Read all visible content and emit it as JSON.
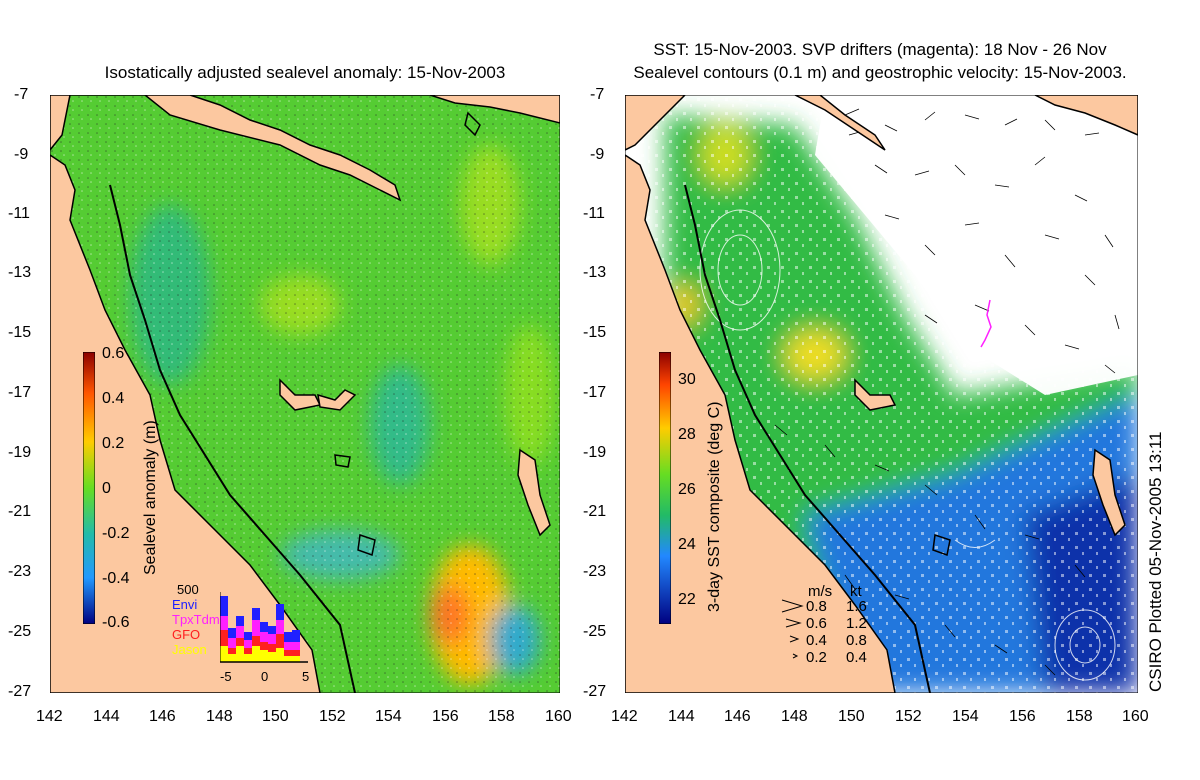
{
  "left_panel": {
    "title": "Isostatically adjusted sealevel anomaly: 15-Nov-2003",
    "y_ticks": [
      "-7",
      "-9",
      "-11",
      "-13",
      "-15",
      "-17",
      "-19",
      "-21",
      "-23",
      "-25",
      "-27"
    ],
    "x_ticks": [
      "142",
      "144",
      "146",
      "148",
      "150",
      "152",
      "154",
      "156",
      "158",
      "160"
    ],
    "colorbar": {
      "label": "Sealevel anomaly (m)",
      "ticks": [
        "0.6",
        "0.4",
        "0.2",
        "0",
        "-0.2",
        "-0.4",
        "-0.6"
      ],
      "range": [
        -0.6,
        0.6
      ]
    },
    "histogram": {
      "max_label": "500",
      "series": [
        "Envi",
        "TpxTdm",
        "GFO",
        "Jason"
      ],
      "series_colors": [
        "#2020ff",
        "#ff20ff",
        "#ff2020",
        "#ffff00"
      ],
      "x_ticks": [
        "-5",
        "0",
        "5"
      ]
    }
  },
  "right_panel": {
    "title_line1": "SST: 15-Nov-2003. SVP drifters (magenta): 18 Nov - 26 Nov",
    "title_line2": "Sealevel contours (0.1 m) and geostrophic velocity: 15-Nov-2003.",
    "y_ticks": [
      "-7",
      "-9",
      "-11",
      "-13",
      "-15",
      "-17",
      "-19",
      "-21",
      "-23",
      "-25",
      "-27"
    ],
    "x_ticks": [
      "142",
      "144",
      "146",
      "148",
      "150",
      "152",
      "154",
      "156",
      "158",
      "160"
    ],
    "colorbar": {
      "label": "3-day SST composite (deg C)",
      "ticks": [
        "30",
        "28",
        "26",
        "24",
        "22"
      ],
      "range": [
        21,
        31
      ]
    },
    "velocity_legend": {
      "header_ms": "m/s",
      "header_kt": "kt",
      "rows": [
        {
          "ms": "0.8",
          "kt": "1.6"
        },
        {
          "ms": "0.6",
          "kt": "1.2"
        },
        {
          "ms": "0.4",
          "kt": "0.8"
        },
        {
          "ms": "0.2",
          "kt": "0.4"
        }
      ]
    }
  },
  "credit": "CSIRO Plotted 05-Nov-2005 13:11",
  "colors": {
    "land": "#fcc8a0",
    "sla_green": "#44cc33",
    "sst_green": "#33bb44",
    "sst_blue": "#2277dd"
  }
}
